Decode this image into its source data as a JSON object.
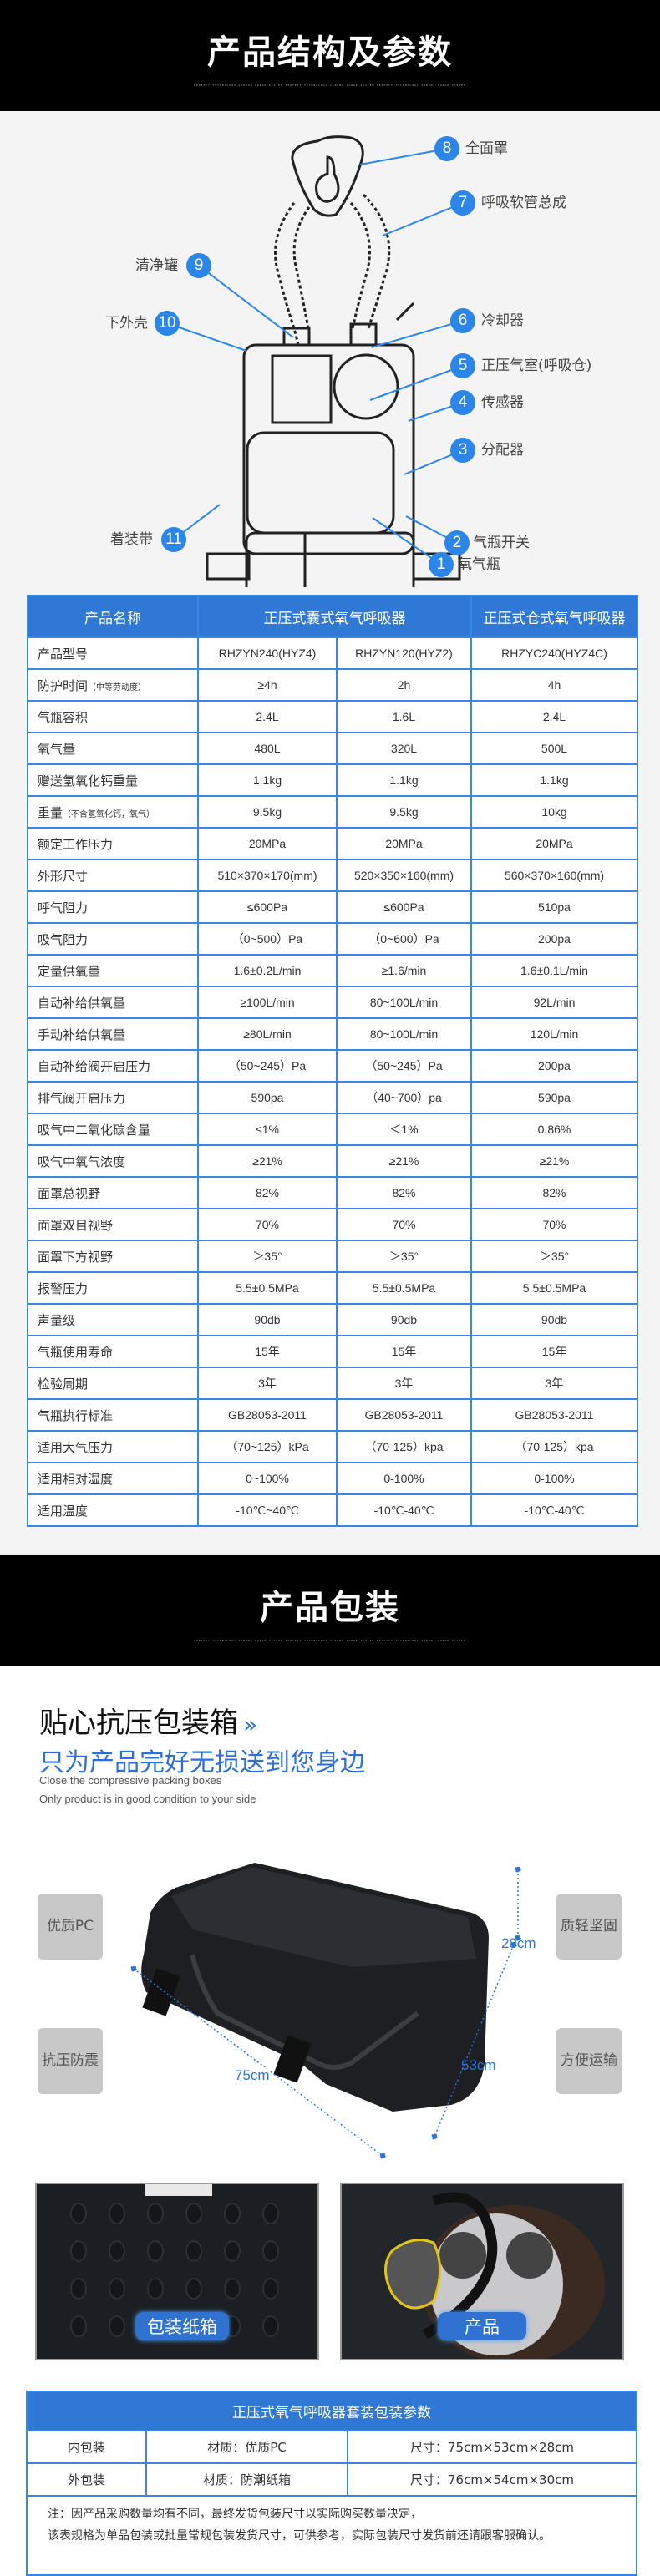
{
  "section1": {
    "title": "产品结构及参数",
    "deco_text": "PERFECT TECHNOLOGY STRONG LARGE SYSTEM PERFECT TECHNOLOGY STRONG LARGE SYSTEM PERFECT TECHNOLOGY STRONG LARGE SYSTEM"
  },
  "diagram": {
    "accent_color": "#2c86ea",
    "callouts": [
      {
        "num": "1",
        "label": "氧气瓶"
      },
      {
        "num": "2",
        "label": "气瓶开关"
      },
      {
        "num": "3",
        "label": "分配器"
      },
      {
        "num": "4",
        "label": "传感器"
      },
      {
        "num": "5",
        "label": "正压气室(呼吸仓)"
      },
      {
        "num": "6",
        "label": "冷却器"
      },
      {
        "num": "7",
        "label": "呼吸软管总成"
      },
      {
        "num": "8",
        "label": "全面罩"
      },
      {
        "num": "9",
        "label": "清净罐"
      },
      {
        "num": "10",
        "label": "下外壳"
      },
      {
        "num": "11",
        "label": "着装带"
      }
    ]
  },
  "spec_table": {
    "header_color": "#2f78d6",
    "headers": [
      "产品名称",
      "正压式囊式氧气呼吸器",
      "正压式仓式氧气呼吸器"
    ],
    "rows": [
      {
        "label": "产品型号",
        "values": [
          "RHZYN240(HYZ4)",
          "RHZYN120(HYZ2)",
          "RHZYC240(HYZ4C)"
        ]
      },
      {
        "label": "防护时间",
        "note": "（中等劳动度）",
        "values": [
          "≥4h",
          "2h",
          "4h"
        ]
      },
      {
        "label": "气瓶容积",
        "values": [
          "2.4L",
          "1.6L",
          "2.4L"
        ]
      },
      {
        "label": "氧气量",
        "values": [
          "480L",
          "320L",
          "500L"
        ]
      },
      {
        "label": "赠送氢氧化钙重量",
        "values": [
          "1.1kg",
          "1.1kg",
          "1.1kg"
        ]
      },
      {
        "label": "重量",
        "note": "（不含氢氧化钙，氧气）",
        "values": [
          "9.5kg",
          "9.5kg",
          "10kg"
        ]
      },
      {
        "label": "额定工作压力",
        "values": [
          "20MPa",
          "20MPa",
          "20MPa"
        ]
      },
      {
        "label": "外形尺寸",
        "values": [
          "510×370×170(mm)",
          "520×350×160(mm)",
          "560×370×160(mm)"
        ]
      },
      {
        "label": "呼气阻力",
        "values": [
          "≤600Pa",
          "≤600Pa",
          "510pa"
        ]
      },
      {
        "label": "吸气阻力",
        "values": [
          "（0~500）Pa",
          "（0~600）Pa",
          "200pa"
        ]
      },
      {
        "label": "定量供氧量",
        "values": [
          "1.6±0.2L/min",
          "≥1.6/min",
          "1.6±0.1L/min"
        ]
      },
      {
        "label": "自动补给供氧量",
        "values": [
          "≥100L/min",
          "80~100L/min",
          "92L/min"
        ]
      },
      {
        "label": "手动补给供氧量",
        "values": [
          "≥80L/min",
          "80~100L/min",
          "120L/min"
        ]
      },
      {
        "label": "自动补给阀开启压力",
        "values": [
          "（50~245）Pa",
          "（50~245）Pa",
          "200pa"
        ]
      },
      {
        "label": "排气阀开启压力",
        "values": [
          "590pa",
          "（40~700）pa",
          "590pa"
        ]
      },
      {
        "label": "吸气中二氧化碳含量",
        "values": [
          "≤1%",
          "＜1%",
          "0.86%"
        ]
      },
      {
        "label": "吸气中氧气浓度",
        "values": [
          "≥21%",
          "≥21%",
          "≥21%"
        ]
      },
      {
        "label": "面罩总视野",
        "values": [
          "82%",
          "82%",
          "82%"
        ]
      },
      {
        "label": "面罩双目视野",
        "values": [
          "70%",
          "70%",
          "70%"
        ]
      },
      {
        "label": "面罩下方视野",
        "values": [
          "＞35°",
          "＞35°",
          "＞35°"
        ]
      },
      {
        "label": "报警压力",
        "values": [
          "5.5±0.5MPa",
          "5.5±0.5MPa",
          "5.5±0.5MPa"
        ]
      },
      {
        "label": "声量级",
        "values": [
          "90db",
          "90db",
          "90db"
        ]
      },
      {
        "label": "气瓶使用寿命",
        "values": [
          "15年",
          "15年",
          "15年"
        ]
      },
      {
        "label": "检验周期",
        "values": [
          "3年",
          "3年",
          "3年"
        ]
      },
      {
        "label": "气瓶执行标准",
        "values": [
          "GB28053-2011",
          "GB28053-2011",
          "GB28053-2011"
        ]
      },
      {
        "label": "适用大气压力",
        "values": [
          "（70~125）kPa",
          "（70-125）kpa",
          "（70-125）kpa"
        ]
      },
      {
        "label": "适用相对湿度",
        "values": [
          "0~100%",
          "0-100%",
          "0-100%"
        ]
      },
      {
        "label": "适用温度",
        "values": [
          "-10℃~40℃",
          "-10℃-40℃",
          "-10℃-40℃"
        ]
      }
    ]
  },
  "section2": {
    "title": "产品包装",
    "deco_text": "PERFECT TECHNOLOGY STRONG LARGE SYSTEM PERFECT TECHNOLOGY STRONG LARGE SYSTEM PERFECT TECHNOLOGY STRONG LARGE SYSTEM",
    "heading": "贴心抗压包装箱",
    "heading_icon": "chevrons-right-icon",
    "subheading": "只为产品完好无损送到您身边",
    "english_1": "Close the compressive packing boxes",
    "english_2": "Only product is in good condition to your side",
    "features": [
      "优质PC",
      "抗压防震",
      "质轻坚固",
      "方便运输"
    ],
    "dimensions": {
      "length": "75cm",
      "width": "53cm",
      "height": "28cm"
    },
    "photo_labels": [
      "包装纸箱",
      "产品"
    ]
  },
  "pack_table": {
    "title": "正压式氧气呼吸器套装包装参数",
    "rows": [
      [
        "内包装",
        "材质：优质PC",
        "尺寸：75cm×53cm×28cm"
      ],
      [
        "外包装",
        "材质：防潮纸箱",
        "尺寸：76cm×54cm×30cm"
      ]
    ],
    "note_1": "注：因产品采购数量均有不同，最终发货包装尺寸以实际购买数量决定，",
    "note_2": "该表规格为单品包装或批量常规包装发货尺寸，可供参考，实际包装尺寸发货前还请跟客服确认。"
  }
}
